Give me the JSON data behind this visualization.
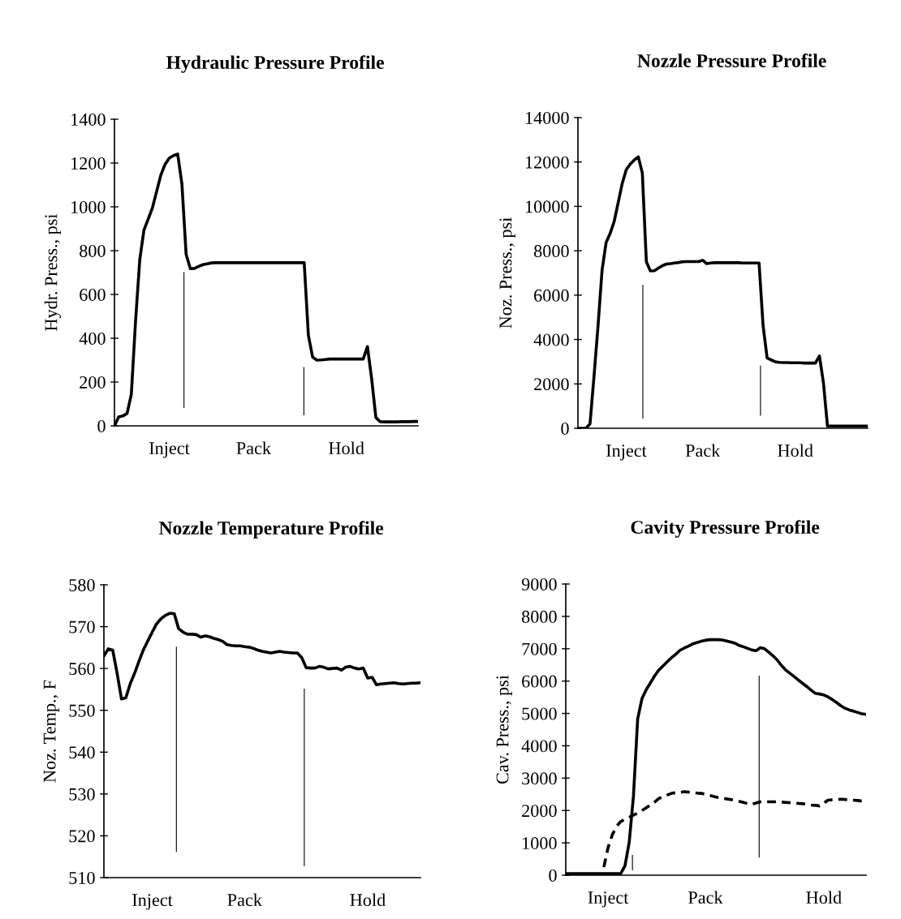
{
  "chart_data": [
    {
      "type": "line",
      "title": "Hydraulic Pressure Profile",
      "ylabel": "Hydr. Press., psi",
      "grid": false,
      "ylim": [
        0,
        1400
      ],
      "yticks": [
        0,
        200,
        400,
        600,
        800,
        1000,
        1200,
        1400
      ],
      "categories": [
        null,
        null,
        null,
        null,
        null,
        null,
        null,
        null,
        null,
        null,
        null,
        null,
        null,
        "Inject",
        null,
        null,
        null,
        null,
        null,
        null,
        null,
        null,
        null,
        null,
        null,
        null,
        null,
        null,
        null,
        null,
        null,
        null,
        null,
        "Pack",
        null,
        null,
        null,
        null,
        null,
        null,
        null,
        null,
        null,
        null,
        null,
        null,
        null,
        null,
        null,
        null,
        null,
        null,
        null,
        null,
        null,
        "Hold",
        null,
        null,
        null,
        null,
        null,
        null,
        null,
        null,
        null,
        null,
        null,
        null,
        null,
        null,
        null,
        null,
        null
      ],
      "series": [
        {
          "color": "#000000",
          "line_style": "solid",
          "values": [
            0,
            41,
            45,
            57,
            144,
            476,
            758,
            894,
            944,
            995,
            1070,
            1145,
            1194,
            1222,
            1234,
            1241,
            1105,
            783,
            718,
            719,
            728,
            736,
            740,
            744,
            745,
            745,
            745,
            745,
            745,
            745,
            745,
            745,
            745,
            745,
            745,
            745,
            745,
            745,
            745,
            745,
            745,
            745,
            745,
            745,
            745,
            745,
            413,
            314,
            300,
            301,
            303,
            305,
            305,
            305,
            305,
            305,
            305,
            305,
            305,
            305,
            362,
            215,
            38,
            19,
            18,
            18,
            18,
            18,
            19,
            19,
            19,
            20,
            20
          ]
        }
      ]
    },
    {
      "type": "line",
      "title": "Nozzle Pressure Profile",
      "ylabel": "Noz. Press., psi",
      "grid": false,
      "ylim": [
        0,
        14000
      ],
      "yticks": [
        0,
        2000,
        4000,
        6000,
        8000,
        10000,
        12000,
        14000
      ],
      "categories": [
        null,
        null,
        null,
        null,
        null,
        null,
        null,
        null,
        null,
        null,
        null,
        null,
        "Inject",
        null,
        null,
        null,
        null,
        null,
        null,
        null,
        null,
        null,
        null,
        null,
        null,
        null,
        null,
        null,
        null,
        null,
        null,
        "Pack",
        null,
        null,
        null,
        null,
        null,
        null,
        null,
        null,
        null,
        null,
        null,
        null,
        null,
        null,
        null,
        null,
        null,
        null,
        null,
        null,
        null,
        null,
        "Hold",
        null,
        null,
        null,
        null,
        null,
        null,
        null,
        null,
        null,
        null,
        null,
        null,
        null,
        null,
        null,
        null,
        null,
        null
      ],
      "series": [
        {
          "color": "#000000",
          "line_style": "solid",
          "values": [
            0,
            0,
            0,
            200,
            2350,
            4630,
            7130,
            8370,
            8780,
            9320,
            10170,
            11030,
            11650,
            11910,
            12090,
            12230,
            11500,
            7500,
            7090,
            7100,
            7220,
            7330,
            7400,
            7420,
            7450,
            7470,
            7500,
            7510,
            7510,
            7510,
            7510,
            7570,
            7420,
            7450,
            7460,
            7460,
            7460,
            7460,
            7460,
            7460,
            7460,
            7450,
            7450,
            7450,
            7450,
            7450,
            4630,
            3170,
            3080,
            3000,
            2970,
            2960,
            2960,
            2950,
            2950,
            2950,
            2940,
            2940,
            2940,
            2940,
            3260,
            2050,
            100,
            100,
            100,
            100,
            100,
            100,
            100,
            100,
            100,
            100,
            100
          ]
        }
      ]
    },
    {
      "type": "line",
      "title": "Nozzle Temperature Profile",
      "ylabel": "Noz. Temp., F",
      "grid": false,
      "ylim": [
        510,
        580
      ],
      "yticks": [
        510,
        520,
        530,
        540,
        550,
        560,
        570,
        580
      ],
      "categories": [
        null,
        null,
        null,
        null,
        null,
        null,
        null,
        null,
        null,
        null,
        null,
        "Inject",
        null,
        null,
        null,
        null,
        null,
        null,
        null,
        null,
        null,
        null,
        null,
        null,
        null,
        null,
        null,
        null,
        null,
        null,
        null,
        null,
        "Pack",
        null,
        null,
        null,
        null,
        null,
        null,
        null,
        null,
        null,
        null,
        null,
        null,
        null,
        null,
        null,
        null,
        null,
        null,
        null,
        null,
        null,
        null,
        null,
        null,
        null,
        null,
        null,
        "Hold",
        null,
        null,
        null,
        null,
        null,
        null,
        null,
        null,
        null,
        null,
        null,
        null
      ],
      "series": [
        {
          "color": "#000000",
          "line_style": "solid",
          "values": [
            563.0,
            564.7,
            564.4,
            558.9,
            552.7,
            553.0,
            556.4,
            558.9,
            561.8,
            564.5,
            566.6,
            568.7,
            570.7,
            571.9,
            572.7,
            573.2,
            573.1,
            569.5,
            568.7,
            568.2,
            568.2,
            568.1,
            567.5,
            567.8,
            567.6,
            567.2,
            566.9,
            566.5,
            565.7,
            565.5,
            565.4,
            565.4,
            565.2,
            565.1,
            564.8,
            564.4,
            564.1,
            563.9,
            563.7,
            563.9,
            564.1,
            563.9,
            563.8,
            563.7,
            563.7,
            562.6,
            560.2,
            560.1,
            560.1,
            560.5,
            560.3,
            559.9,
            560.0,
            560.1,
            559.6,
            560.3,
            560.5,
            560.1,
            559.9,
            560.1,
            557.7,
            557.9,
            556.1,
            556.3,
            556.4,
            556.5,
            556.6,
            556.4,
            556.3,
            556.4,
            556.5,
            556.5,
            556.6
          ]
        }
      ]
    },
    {
      "type": "line",
      "title": "Cavity Pressure Profile",
      "ylabel": "Cav. Press., psi",
      "grid": false,
      "ylim": [
        0,
        9000
      ],
      "yticks": [
        0,
        1000,
        2000,
        3000,
        4000,
        5000,
        6000,
        7000,
        8000,
        9000
      ],
      "categories": [
        null,
        null,
        null,
        null,
        null,
        null,
        null,
        null,
        null,
        null,
        "Inject",
        null,
        null,
        null,
        null,
        null,
        null,
        null,
        null,
        null,
        null,
        null,
        null,
        null,
        null,
        null,
        null,
        null,
        null,
        null,
        null,
        null,
        null,
        "Pack",
        null,
        null,
        null,
        null,
        null,
        null,
        null,
        null,
        null,
        null,
        null,
        null,
        null,
        null,
        null,
        null,
        null,
        null,
        null,
        null,
        null,
        null,
        null,
        null,
        null,
        null,
        null,
        "Hold",
        null,
        null,
        null,
        null,
        null,
        null,
        null,
        null,
        null,
        null
      ],
      "series": [
        {
          "color": "#000000",
          "line_style": "solid",
          "values": [
            50,
            50,
            50,
            50,
            50,
            50,
            50,
            50,
            50,
            50,
            50,
            50,
            50,
            50,
            290,
            1020,
            2440,
            4830,
            5450,
            5730,
            5940,
            6160,
            6340,
            6470,
            6600,
            6720,
            6830,
            6950,
            7020,
            7080,
            7150,
            7190,
            7230,
            7260,
            7280,
            7280,
            7280,
            7270,
            7240,
            7210,
            7170,
            7100,
            7060,
            7010,
            6960,
            6940,
            7030,
            7000,
            6890,
            6780,
            6650,
            6480,
            6340,
            6240,
            6140,
            6030,
            5930,
            5830,
            5720,
            5620,
            5600,
            5570,
            5510,
            5430,
            5340,
            5240,
            5160,
            5110,
            5070,
            5030,
            4990,
            4970
          ]
        },
        {
          "color": "#000000",
          "line_style": "dashed",
          "values": [
            null,
            null,
            null,
            null,
            null,
            null,
            null,
            null,
            null,
            250,
            850,
            1250,
            1510,
            1660,
            1730,
            1790,
            1860,
            1920,
            2000,
            2080,
            2170,
            2260,
            2370,
            2430,
            2480,
            2530,
            2550,
            2560,
            2580,
            2570,
            2560,
            2540,
            2530,
            2500,
            2470,
            2430,
            2400,
            2380,
            2360,
            2340,
            2310,
            2280,
            2250,
            2210,
            2190,
            2230,
            2270,
            2270,
            2270,
            2270,
            2270,
            2260,
            2250,
            2240,
            2230,
            2220,
            2210,
            2190,
            2170,
            2160,
            2140,
            2230,
            2320,
            2330,
            2340,
            2350,
            2340,
            2330,
            2320,
            2310,
            2290,
            2270
          ]
        }
      ]
    }
  ]
}
